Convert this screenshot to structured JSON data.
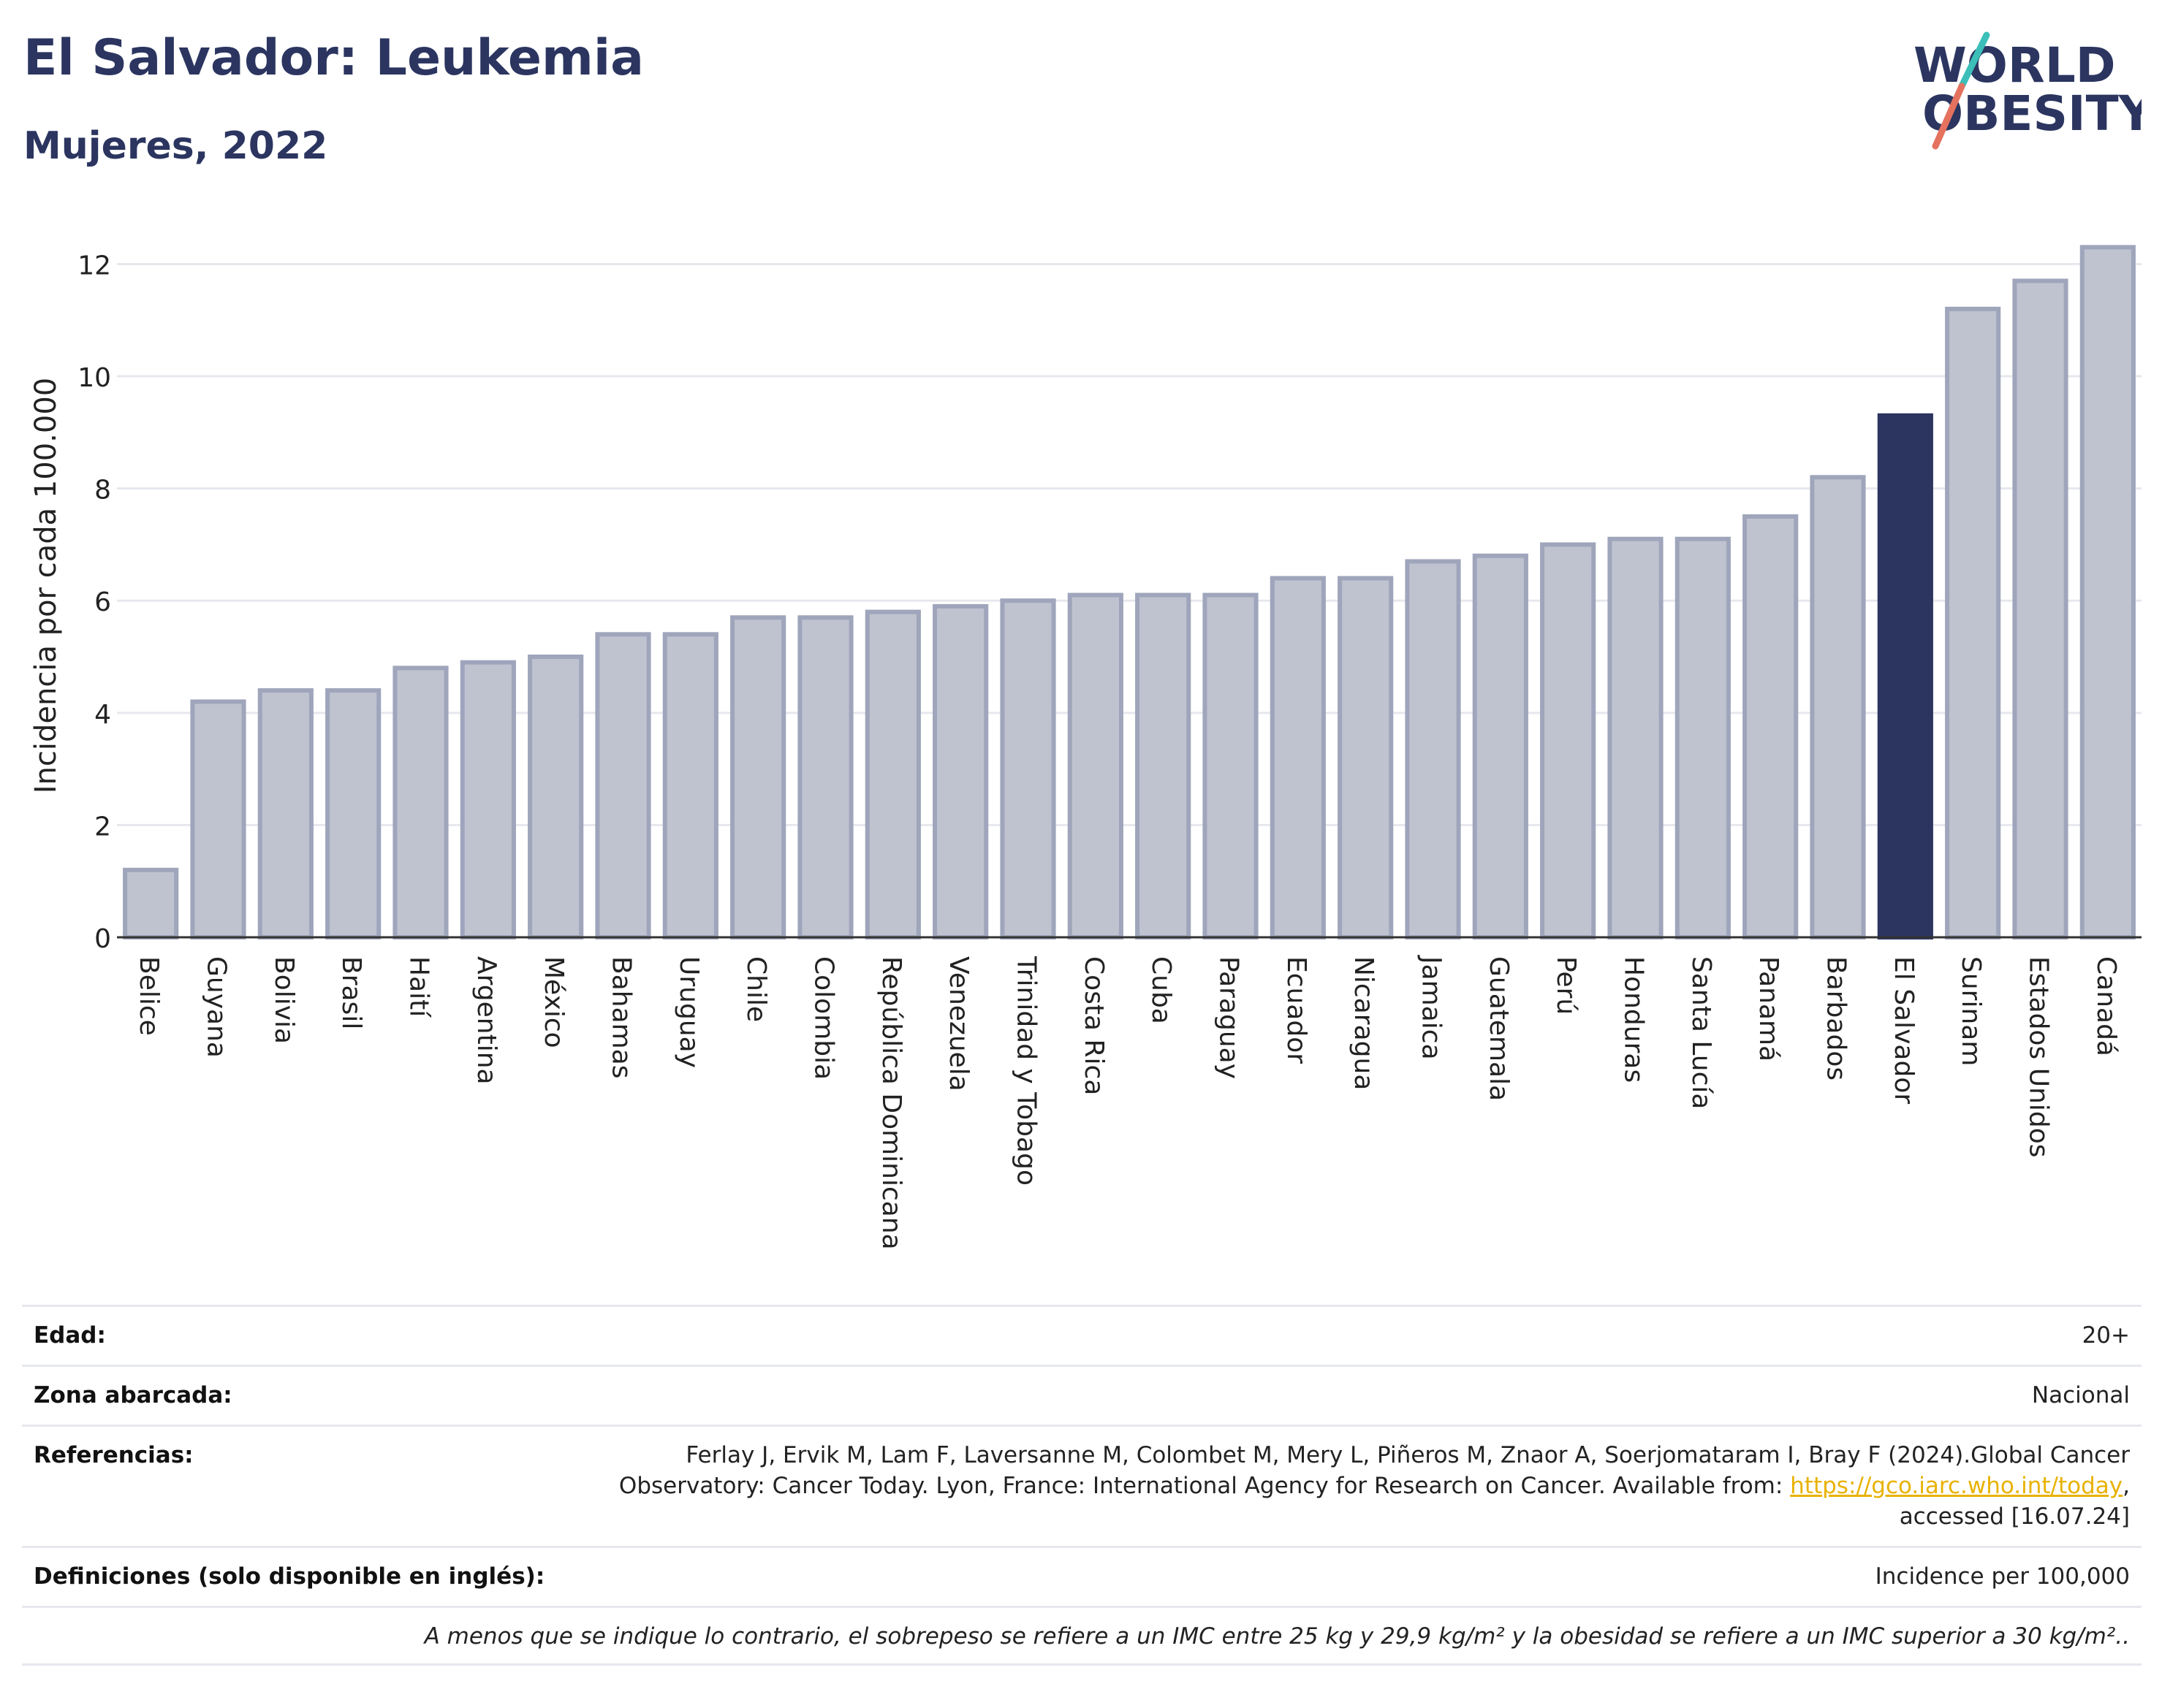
{
  "header": {
    "title": "El Salvador: Leukemia",
    "subtitle": "Mujeres, 2022",
    "logo_line1": "WORLD",
    "logo_line2": "OBESITY"
  },
  "chart_data": {
    "type": "bar",
    "title": "El Salvador: Leukemia",
    "subtitle": "Mujeres, 2022",
    "xlabel": "",
    "ylabel": "Incidencia por cada 100.000",
    "ylim": [
      0,
      12.8
    ],
    "yticks": [
      0,
      2,
      4,
      6,
      8,
      10,
      12
    ],
    "grid": true,
    "categories": [
      "Belice",
      "Guyana",
      "Bolivia",
      "Brasil",
      "Haití",
      "Argentina",
      "México",
      "Bahamas",
      "Uruguay",
      "Chile",
      "Colombia",
      "República Dominicana",
      "Venezuela",
      "Trinidad y Tobago",
      "Costa Rica",
      "Cuba",
      "Paraguay",
      "Ecuador",
      "Nicaragua",
      "Jamaica",
      "Guatemala",
      "Perú",
      "Honduras",
      "Santa Lucía",
      "Panamá",
      "Barbados",
      "El Salvador",
      "Surinam",
      "Estados Unidos",
      "Canadá"
    ],
    "values": [
      1.2,
      4.2,
      4.4,
      4.4,
      4.8,
      4.9,
      5.0,
      5.4,
      5.4,
      5.7,
      5.7,
      5.8,
      5.9,
      6.0,
      6.1,
      6.1,
      6.1,
      6.4,
      6.4,
      6.7,
      6.8,
      7.0,
      7.1,
      7.1,
      7.5,
      8.2,
      9.3,
      11.2,
      11.7,
      12.3
    ],
    "highlight": "El Salvador",
    "colors": {
      "bar": "#bfc3d0",
      "bar_edge": "#9fa5bb",
      "highlight": "#2b3560"
    }
  },
  "info": {
    "edad_label": "Edad:",
    "edad_value": "20+",
    "zona_label": "Zona abarcada:",
    "zona_value": "Nacional",
    "ref_label": "Referencias:",
    "ref_line1": "Ferlay J, Ervik M, Lam F, Laversanne M, Colombet M, Mery L, Piñeros M, Znaor A, Soerjomataram I, Bray F (2024).Global Cancer",
    "ref_line2": "Observatory: Cancer Today. Lyon, France: International Agency for Research on Cancer. Available from: ",
    "ref_link": "https://gco.iarc.who.int/today",
    "ref_line2_end": ",",
    "ref_line3": "accessed [16.07.24]",
    "def_label": "Definiciones (solo disponible en inglés):",
    "def_value": "Incidence per 100,000",
    "note": "A menos que se indique lo contrario, el sobrepeso se refiere a un IMC entre 25 kg y 29,9 kg/m² y la obesidad se refiere a un IMC superior a 30 kg/m².."
  }
}
